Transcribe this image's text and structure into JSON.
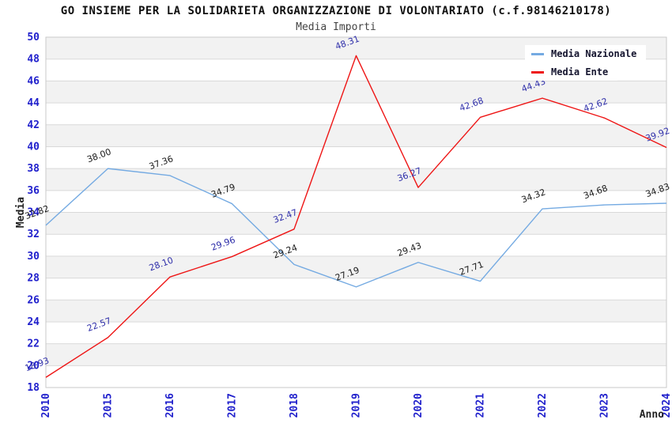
{
  "chart_data": {
    "type": "line",
    "title": "GO INSIEME PER LA SOLIDARIETA ORGANIZZAZIONE DI VOLONTARIATO (c.f.98146210178)",
    "subtitle": "Media Importi",
    "xlabel": "Anno",
    "ylabel": "Media",
    "categories": [
      "2010",
      "2015",
      "2016",
      "2017",
      "2018",
      "2019",
      "2020",
      "2021",
      "2022",
      "2023",
      "2024"
    ],
    "series": [
      {
        "name": "Media Nazionale",
        "color": "#74aae2",
        "label_color": "#1a1a1a",
        "values": [
          32.82,
          38.0,
          37.36,
          34.79,
          29.24,
          27.19,
          29.43,
          27.71,
          34.32,
          34.68,
          34.83
        ]
      },
      {
        "name": "Media Ente",
        "color": "#ee1515",
        "label_color": "#3030aa",
        "values": [
          18.93,
          22.57,
          28.1,
          29.96,
          32.47,
          48.31,
          36.27,
          42.68,
          44.43,
          42.62,
          39.92
        ]
      }
    ],
    "ylim": [
      18,
      50
    ],
    "ytick_step": 2,
    "yticks": [
      18,
      20,
      22,
      24,
      26,
      28,
      30,
      32,
      34,
      36,
      38,
      40,
      42,
      44,
      46,
      48,
      50
    ],
    "legend_position": "top-right",
    "grid": "horizontal-bands",
    "band_colors": [
      "#f2f2f2",
      "#ffffff"
    ],
    "gridline_color": "#d9d9d9",
    "plot_border_color": "#c9c9c9",
    "axis_tick_color": "#2020cc",
    "axis_title_color": "#222222",
    "data_label_rotation": -20,
    "x_tick_rotation": -90
  }
}
